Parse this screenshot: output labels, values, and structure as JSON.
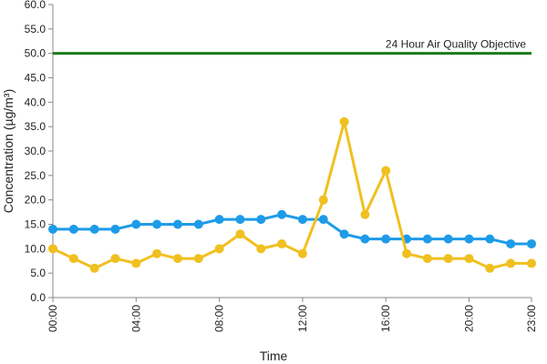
{
  "chart_data": {
    "type": "line",
    "y_label": "Concentration (µg/m³)",
    "x_label": "Time",
    "categories": [
      "00:00",
      null,
      null,
      null,
      "04:00",
      null,
      null,
      null,
      "08:00",
      null,
      null,
      null,
      "12:00",
      null,
      null,
      null,
      "16:00",
      null,
      null,
      null,
      "20:00",
      null,
      null,
      "23:00"
    ],
    "series": [
      {
        "color": "#1e9be8",
        "values": [
          14,
          14,
          14,
          14,
          15,
          15,
          15,
          15,
          16,
          16,
          16,
          17,
          16,
          16,
          13,
          12,
          12,
          12,
          12,
          12,
          12,
          12,
          11,
          11
        ]
      },
      {
        "color": "#f0c020",
        "values": [
          10,
          8,
          6,
          8,
          7,
          9,
          8,
          8,
          10,
          13,
          10,
          11,
          9,
          20,
          36,
          17,
          26,
          9,
          8,
          8,
          8,
          6,
          7,
          7
        ]
      }
    ],
    "reference_line": {
      "label": "24 Hour Air Quality Objective",
      "value": 50,
      "color": "#1a7a1a"
    },
    "ylim": [
      0,
      60
    ],
    "yticks": [
      {
        "value": 0,
        "label": "0.0"
      },
      {
        "value": 5,
        "label": "5.0"
      },
      {
        "value": 10,
        "label": "10.0"
      },
      {
        "value": 15,
        "label": "15.0"
      },
      {
        "value": 20,
        "label": "20.0"
      },
      {
        "value": 25,
        "label": "25.0"
      },
      {
        "value": 30,
        "label": "30.0"
      },
      {
        "value": 35,
        "label": "35.0"
      },
      {
        "value": 40,
        "label": "40.0"
      },
      {
        "value": 45,
        "label": "45.0"
      },
      {
        "value": 50,
        "label": "50.0"
      },
      {
        "value": 55,
        "label": "55.0"
      },
      {
        "value": 60,
        "label": "60.0"
      }
    ],
    "grid": false
  }
}
